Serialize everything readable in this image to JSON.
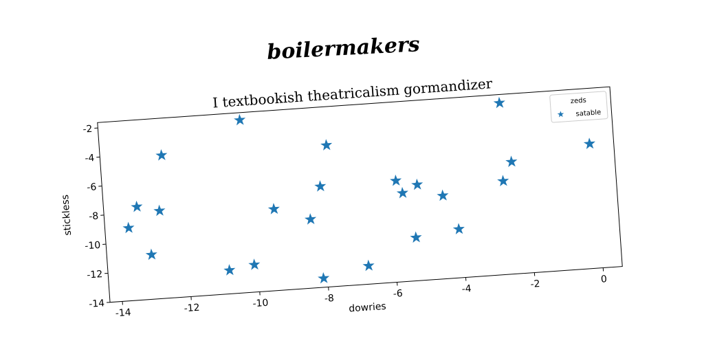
{
  "chart_data": {
    "type": "scatter",
    "suptitle": "boilermakers",
    "title": "I textbookish theatricalism gormandizer",
    "xlabel": "dowries",
    "ylabel": "stickless",
    "legend_title": "zeds",
    "legend": "upper right",
    "series": [
      {
        "name": "satable",
        "color": "#1f77b4",
        "marker": "star",
        "x": [
          -13.67,
          -13.39,
          -12.74,
          -12.57,
          -13.06,
          -10.23,
          -10.83,
          -10.1,
          -9.42,
          -8.38,
          -8.03,
          -7.77,
          -8.12,
          -6.79,
          -5.83,
          -5.66,
          -5.22,
          -5.36,
          -4.5,
          -4.1,
          -2.67,
          -2.44,
          -2.72,
          -0.14
        ],
        "values": [
          -9.0,
          -7.59,
          -7.97,
          -4.18,
          -10.94,
          -2.14,
          -12.38,
          -12.12,
          -8.4,
          -9.28,
          -7.07,
          -4.28,
          -13.38,
          -12.74,
          -7.04,
          -7.92,
          -7.42,
          -11.03,
          -8.29,
          -10.66,
          -2.21,
          -6.3,
          -7.58,
          -5.44
        ]
      }
    ],
    "xlim": [
      -14.36,
      0.56
    ],
    "ylim": [
      -14,
      -1.63
    ],
    "xticks": [
      -14,
      -12,
      -10,
      -8,
      -6,
      -4,
      -2,
      0
    ],
    "yticks": [
      -14,
      -12,
      -10,
      -8,
      -6,
      -4,
      -2
    ],
    "grid": false
  }
}
